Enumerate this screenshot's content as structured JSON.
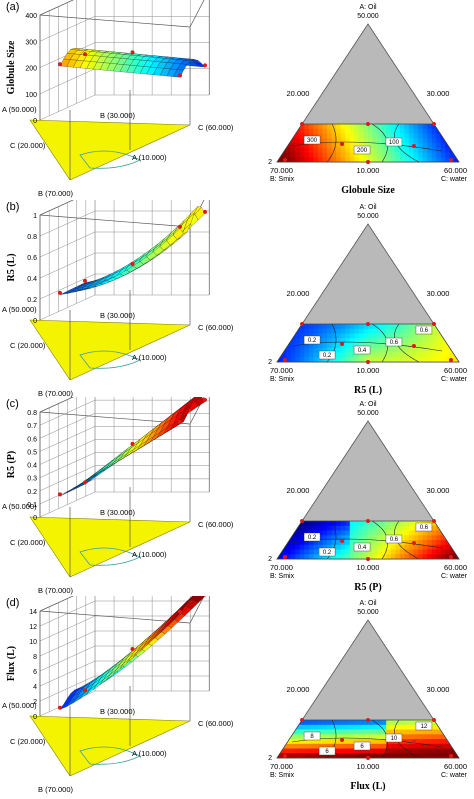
{
  "chart_data": [
    {
      "type": "surface",
      "panel_label": "(a)",
      "ylabel": "Globule Size",
      "z_ticks": [
        "0",
        "100",
        "200",
        "300",
        "400"
      ],
      "axis_a": [
        "A (50.000)",
        "A (10.000)"
      ],
      "axis_b": [
        "B (70.000)",
        "B (30.000)"
      ],
      "axis_c": [
        "C (20.000)",
        "C (60.000)"
      ],
      "surface_range": [
        60,
        180
      ],
      "contour": {
        "title": "Globule Size",
        "vertex_a": [
          "A: Oil",
          "50.000"
        ],
        "vertex_b": [
          "70.000",
          "B: Smix"
        ],
        "vertex_c": [
          "60.000",
          "C: water"
        ],
        "edge_labels": [
          "20.000",
          "30.000",
          "10.000"
        ],
        "corner_label": "2",
        "contour_values": [
          "300",
          "200",
          "100"
        ]
      }
    },
    {
      "type": "surface",
      "panel_label": "(b)",
      "ylabel": "R5 (L)",
      "z_ticks": [
        "0",
        "0.2",
        "0.4",
        "0.6",
        "0.8",
        "1"
      ],
      "axis_a": [
        "A (50.000)",
        "A (10.000)"
      ],
      "axis_b": [
        "B (70.000)",
        "B (30.000)"
      ],
      "axis_c": [
        "C (20.000)",
        "C (60.000)"
      ],
      "surface_range": [
        0.2,
        0.7
      ],
      "contour": {
        "title": "R5 (L)",
        "vertex_a": [
          "A: Oil",
          "50.000"
        ],
        "vertex_b": [
          "70.000",
          "B: Smix"
        ],
        "vertex_c": [
          "60.000",
          "C: water"
        ],
        "edge_labels": [
          "20.000",
          "30.000",
          "10.000"
        ],
        "corner_label": "2",
        "contour_values": [
          "0.2",
          "0.4",
          "0.6",
          "0.6",
          "0.2"
        ]
      }
    },
    {
      "type": "surface",
      "panel_label": "(c)",
      "ylabel": "R5 (P)",
      "z_ticks": [
        "0",
        "0.1",
        "0.2",
        "0.3",
        "0.4",
        "0.5",
        "0.6",
        "0.7",
        "0.8"
      ],
      "axis_a": [
        "A (50.000)",
        "A (10.000)"
      ],
      "axis_b": [
        "B (70.000)",
        "B (30.000)"
      ],
      "axis_c": [
        "C (20.000)",
        "C (60.000)"
      ],
      "surface_range": [
        0.2,
        0.7
      ],
      "contour": {
        "title": "R5 (P)",
        "vertex_a": [
          "A: Oil",
          "50.000"
        ],
        "vertex_b": [
          "70.000",
          "B: Smix"
        ],
        "vertex_c": [
          "60.000",
          "C: water"
        ],
        "edge_labels": [
          "20.000",
          "30.000",
          "10.000"
        ],
        "corner_label": "2",
        "contour_values": [
          "0.2",
          "0.4",
          "0.6",
          "0.6",
          "0.2"
        ]
      }
    },
    {
      "type": "surface",
      "panel_label": "(d)",
      "ylabel": "Flux (L)",
      "z_ticks": [
        "0",
        "2",
        "4",
        "6",
        "8",
        "10",
        "12",
        "14"
      ],
      "axis_a": [
        "A (50.000)",
        "A (10.000)"
      ],
      "axis_b": [
        "B (70.000)",
        "B (30.000)"
      ],
      "axis_c": [
        "C (20.000)",
        "C (60.000)"
      ],
      "surface_range": [
        4,
        12
      ],
      "contour": {
        "title": "Flux (L)",
        "vertex_a": [
          "A: Oil",
          "50.000"
        ],
        "vertex_b": [
          "70.000",
          "B: Smix"
        ],
        "vertex_c": [
          "60.000",
          "C: water"
        ],
        "edge_labels": [
          "20.000",
          "30.000",
          "10.000"
        ],
        "corner_label": "2",
        "contour_values": [
          "8",
          "6",
          "10",
          "12",
          "6"
        ]
      }
    }
  ]
}
